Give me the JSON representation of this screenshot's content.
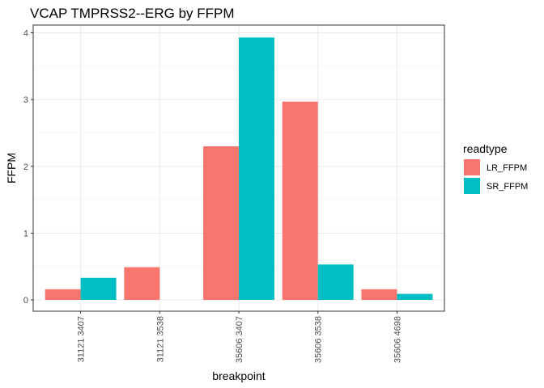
{
  "chart_data": {
    "type": "bar",
    "title": "VCAP TMPRSS2--ERG by FFPM",
    "xlabel": "breakpoint",
    "ylabel": "FFPM",
    "categories": [
      "31121 3407",
      "31121 3538",
      "35606 3407",
      "35606 3538",
      "35606 4698"
    ],
    "series": [
      {
        "name": "LR_FFPM",
        "color": "#F8766D",
        "values": [
          0.16,
          0.49,
          2.3,
          2.97,
          0.16
        ]
      },
      {
        "name": "SR_FFPM",
        "color": "#00BFC4",
        "values": [
          0.33,
          0.0,
          3.93,
          0.53,
          0.09
        ]
      }
    ],
    "ylim": [
      0,
      4
    ],
    "yticks": [
      "0",
      "1",
      "2",
      "3",
      "4"
    ],
    "legend_title": "readtype",
    "legend_position": "right",
    "grid": true,
    "theme": "bw"
  }
}
